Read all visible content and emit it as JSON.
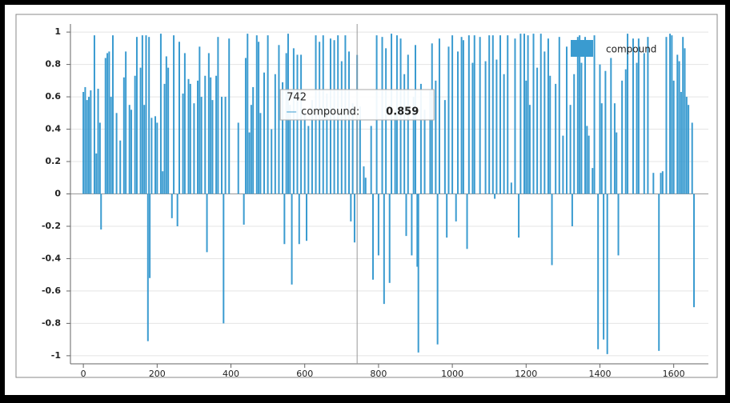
{
  "chart_data": {
    "type": "bar",
    "x": [
      0,
      5,
      10,
      15,
      20,
      30,
      35,
      40,
      45,
      48,
      60,
      65,
      70,
      75,
      80,
      90,
      100,
      110,
      115,
      125,
      130,
      140,
      145,
      155,
      160,
      165,
      170,
      175,
      178,
      180,
      185,
      195,
      200,
      210,
      215,
      220,
      225,
      230,
      240,
      245,
      255,
      260,
      270,
      275,
      285,
      290,
      300,
      310,
      315,
      320,
      330,
      335,
      340,
      345,
      350,
      360,
      365,
      375,
      380,
      385,
      395,
      420,
      435,
      440,
      445,
      450,
      455,
      460,
      470,
      475,
      480,
      490,
      500,
      510,
      520,
      530,
      540,
      545,
      550,
      555,
      560,
      565,
      570,
      580,
      585,
      590,
      600,
      605,
      610,
      620,
      630,
      640,
      650,
      660,
      670,
      680,
      690,
      700,
      710,
      720,
      725,
      730,
      735,
      742,
      750,
      760,
      765,
      780,
      785,
      795,
      800,
      810,
      815,
      820,
      830,
      835,
      845,
      850,
      860,
      870,
      875,
      880,
      890,
      895,
      900,
      905,
      908,
      915,
      925,
      940,
      945,
      955,
      960,
      965,
      980,
      985,
      990,
      1000,
      1010,
      1015,
      1025,
      1030,
      1040,
      1045,
      1055,
      1060,
      1075,
      1090,
      1100,
      1110,
      1115,
      1120,
      1130,
      1140,
      1150,
      1160,
      1170,
      1180,
      1185,
      1195,
      1200,
      1205,
      1210,
      1220,
      1230,
      1240,
      1250,
      1260,
      1265,
      1270,
      1280,
      1290,
      1300,
      1310,
      1320,
      1325,
      1330,
      1340,
      1345,
      1350,
      1360,
      1365,
      1370,
      1380,
      1385,
      1395,
      1400,
      1405,
      1410,
      1415,
      1420,
      1430,
      1440,
      1445,
      1450,
      1460,
      1470,
      1475,
      1490,
      1500,
      1505,
      1520,
      1530,
      1545,
      1560,
      1565,
      1570,
      1580,
      1590,
      1595,
      1600,
      1610,
      1615,
      1620,
      1625,
      1630,
      1635,
      1640,
      1650,
      1655
    ],
    "series": [
      {
        "name": "compound",
        "color": "#3a9bd0",
        "values": [
          0.63,
          0.66,
          0.58,
          0.6,
          0.64,
          0.98,
          0.25,
          0.65,
          0.44,
          -0.22,
          0.84,
          0.87,
          0.88,
          0.6,
          0.98,
          0.5,
          0.33,
          0.72,
          0.88,
          0.55,
          0.52,
          0.73,
          0.97,
          0.78,
          0.98,
          0.55,
          0.98,
          -0.91,
          0.97,
          -0.52,
          0.47,
          0.48,
          0.44,
          0.99,
          0.14,
          0.68,
          0.85,
          0.78,
          -0.15,
          0.98,
          -0.2,
          0.94,
          0.62,
          0.87,
          0.71,
          0.68,
          0.56,
          0.7,
          0.91,
          0.6,
          0.73,
          -0.36,
          0.87,
          0.72,
          0.58,
          0.73,
          0.97,
          0.6,
          -0.8,
          0.6,
          0.96,
          0.44,
          -0.19,
          0.84,
          0.99,
          0.38,
          0.55,
          0.66,
          0.98,
          0.94,
          0.5,
          0.75,
          0.98,
          0.4,
          0.74,
          0.92,
          0.69,
          -0.31,
          0.87,
          0.99,
          0.55,
          -0.56,
          0.9,
          0.86,
          -0.31,
          0.86,
          0.5,
          -0.29,
          0.42,
          0.58,
          0.98,
          0.94,
          0.98,
          0.62,
          0.96,
          0.95,
          0.98,
          0.82,
          0.98,
          0.88,
          -0.17,
          0.56,
          -0.3,
          0.859,
          0.54,
          0.17,
          0.1,
          0.42,
          -0.53,
          0.98,
          -0.38,
          0.97,
          -0.68,
          0.9,
          -0.55,
          0.99,
          0.52,
          0.98,
          0.96,
          0.74,
          -0.26,
          0.86,
          -0.38,
          0.6,
          0.92,
          -0.45,
          -0.98,
          0.68,
          0.52,
          0.64,
          0.93,
          0.7,
          -0.93,
          0.96,
          0.58,
          -0.27,
          0.91,
          0.98,
          -0.17,
          0.88,
          0.97,
          0.95,
          -0.34,
          0.98,
          0.81,
          0.98,
          0.97,
          0.82,
          0.98,
          0.98,
          -0.03,
          0.83,
          0.98,
          0.74,
          0.98,
          0.07,
          0.96,
          -0.27,
          0.99,
          0.99,
          0.7,
          0.98,
          0.55,
          0.99,
          0.78,
          0.99,
          0.88,
          0.96,
          0.73,
          -0.44,
          0.68,
          0.97,
          0.36,
          0.91,
          0.55,
          -0.2,
          0.74,
          0.97,
          0.98,
          0.81,
          0.97,
          0.42,
          0.36,
          0.16,
          0.98,
          -0.96,
          0.8,
          0.56,
          -0.9,
          0.76,
          -0.99,
          0.84,
          0.56,
          0.38,
          -0.38,
          0.7,
          0.77,
          0.99,
          0.96,
          0.81,
          0.96,
          0.87,
          0.97,
          0.13,
          -0.97,
          0.13,
          0.14,
          0.97,
          0.99,
          0.98,
          0.7,
          0.86,
          0.82,
          0.63,
          0.97,
          0.9,
          0.6,
          0.55,
          0.44,
          -0.7
        ]
      }
    ],
    "xlim": [
      -35,
      1694
    ],
    "ylim": [
      -1.05,
      1.05
    ],
    "xticks": [
      0,
      200,
      400,
      600,
      800,
      1000,
      1200,
      1400,
      1600
    ],
    "yticks": [
      -1,
      -0.8,
      -0.6,
      -0.4,
      -0.2,
      0,
      0.2,
      0.4,
      0.6,
      0.8,
      1
    ],
    "grid": true,
    "legend": "top-right",
    "tooltip": {
      "x": 742,
      "label": "compound:",
      "value": 0.859
    }
  }
}
